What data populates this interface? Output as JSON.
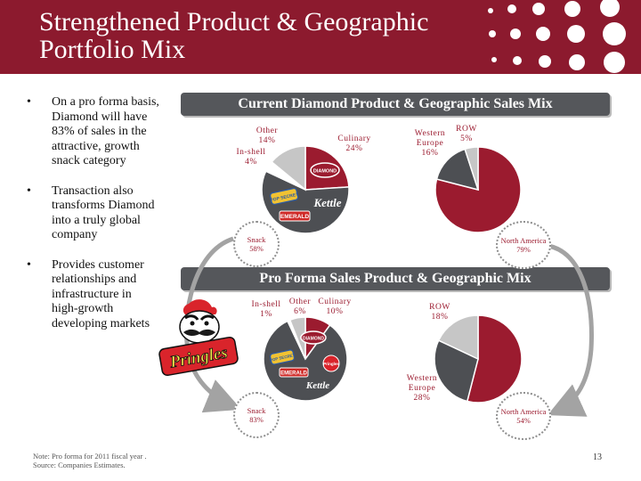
{
  "title_lines": [
    "Strengthened Product & Geographic",
    "Portfolio Mix"
  ],
  "bullets": [
    "On a pro forma basis, Diamond will have 83% of sales in the attractive, growth snack category",
    "Transaction also transforms Diamond into a truly global company",
    "Provides customer relationships and infrastructure in high-growth developing markets"
  ],
  "banners": {
    "current": "Current Diamond Product & Geographic Sales Mix",
    "proforma": "Pro Forma Sales Product & Geographic Mix"
  },
  "brands": {
    "diamond": "DIAMOND",
    "popsecret": "POP SECRET",
    "kettle": "Kettle",
    "emerald": "EMERALD",
    "pringles_mini": "Pringles",
    "pringles_big": "Pringles"
  },
  "colors": {
    "red": "#9b1b2f",
    "dark": "#4d4f53",
    "light": "#c6c6c6",
    "header": "#8c1a2e"
  },
  "chart_data": [
    {
      "type": "pie",
      "title": "Current Diamond Product Sales Mix",
      "slices": [
        {
          "label_line1": "Culinary",
          "label_line2": "24%",
          "value": 24,
          "color": "#9b1b2f"
        },
        {
          "label_line1": "Snack",
          "label_line2": "58%",
          "value": 58,
          "color": "#4d4f53"
        },
        {
          "label_line1": "In-shell",
          "label_line2": "4%",
          "value": 4,
          "color": "#ffffff"
        },
        {
          "label_line1": "Other",
          "label_line2": "14%",
          "value": 14,
          "color": "#c6c6c6"
        }
      ]
    },
    {
      "type": "pie",
      "title": "Current Diamond Geographic Sales Mix",
      "slices": [
        {
          "label_line1": "North America",
          "label_line2": "79%",
          "value": 79,
          "color": "#9b1b2f"
        },
        {
          "label_line1": "Western Europe",
          "label_line2": "16%",
          "value": 16,
          "color": "#4d4f53"
        },
        {
          "label_line1": "ROW",
          "label_line2": "5%",
          "value": 5,
          "color": "#c6c6c6"
        }
      ]
    },
    {
      "type": "pie",
      "title": "Pro Forma Product Sales Mix",
      "slices": [
        {
          "label_line1": "Culinary",
          "label_line2": "10%",
          "value": 10,
          "color": "#9b1b2f"
        },
        {
          "label_line1": "Snack",
          "label_line2": "83%",
          "value": 83,
          "color": "#4d4f53"
        },
        {
          "label_line1": "In-shell",
          "label_line2": "1%",
          "value": 1,
          "color": "#ffffff"
        },
        {
          "label_line1": "Other",
          "label_line2": "6%",
          "value": 6,
          "color": "#c6c6c6"
        }
      ]
    },
    {
      "type": "pie",
      "title": "Pro Forma Geographic Sales Mix",
      "slices": [
        {
          "label_line1": "North America",
          "label_line2": "54%",
          "value": 54,
          "color": "#9b1b2f"
        },
        {
          "label_line1": "Western Europe",
          "label_line2": "28%",
          "value": 28,
          "color": "#4d4f53"
        },
        {
          "label_line1": "ROW",
          "label_line2": "18%",
          "value": 18,
          "color": "#c6c6c6"
        }
      ]
    }
  ],
  "footnote_lines": [
    "Note:  Pro forma for 2011 fiscal year .",
    "Source:  Companies Estimates."
  ],
  "page_number": "13"
}
